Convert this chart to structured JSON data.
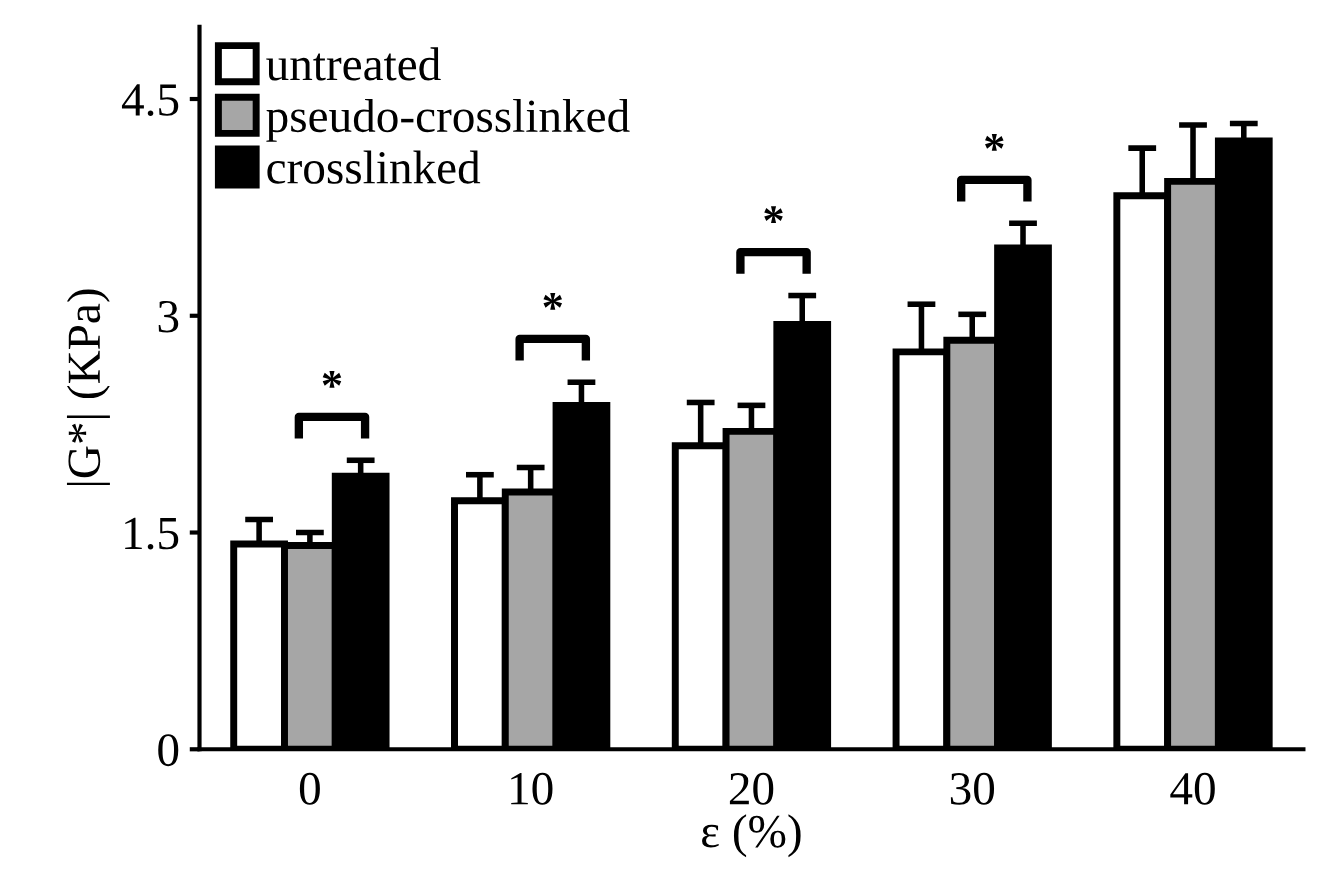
{
  "chart_data": {
    "type": "bar",
    "xlabel": "ε (%)",
    "ylabel": "|G*| (KPa)",
    "categories": [
      "0",
      "10",
      "20",
      "30",
      "40"
    ],
    "series": [
      {
        "name": "untreated",
        "color": "#ffffff",
        "values": [
          1.42,
          1.72,
          2.1,
          2.75,
          3.83
        ],
        "errors": [
          [
            1.42,
            1.59
          ],
          [
            1.72,
            1.9
          ],
          [
            2.1,
            2.4
          ],
          [
            2.75,
            3.08
          ],
          [
            3.83,
            4.16
          ]
        ]
      },
      {
        "name": "pseudo-crosslinked",
        "color": "#a6a6a6",
        "values": [
          1.41,
          1.78,
          2.2,
          2.83,
          3.93
        ],
        "errors": [
          [
            1.41,
            1.5
          ],
          [
            1.78,
            1.95
          ],
          [
            2.2,
            2.38
          ],
          [
            2.83,
            3.01
          ],
          [
            3.93,
            4.32
          ]
        ]
      },
      {
        "name": "crosslinked",
        "color": "#000000",
        "values": [
          1.89,
          2.38,
          2.94,
          3.47,
          4.21
        ],
        "errors": [
          [
            1.89,
            2.0
          ],
          [
            2.38,
            2.54
          ],
          [
            2.94,
            3.14
          ],
          [
            3.47,
            3.64
          ],
          [
            4.21,
            4.33
          ]
        ]
      }
    ],
    "ylim": [
      0,
      5.0
    ],
    "yticks": [
      0,
      1.5,
      3,
      4.5
    ],
    "grid": false,
    "legend": "top left",
    "annotations": [
      "*",
      "*",
      "*",
      "*"
    ]
  }
}
